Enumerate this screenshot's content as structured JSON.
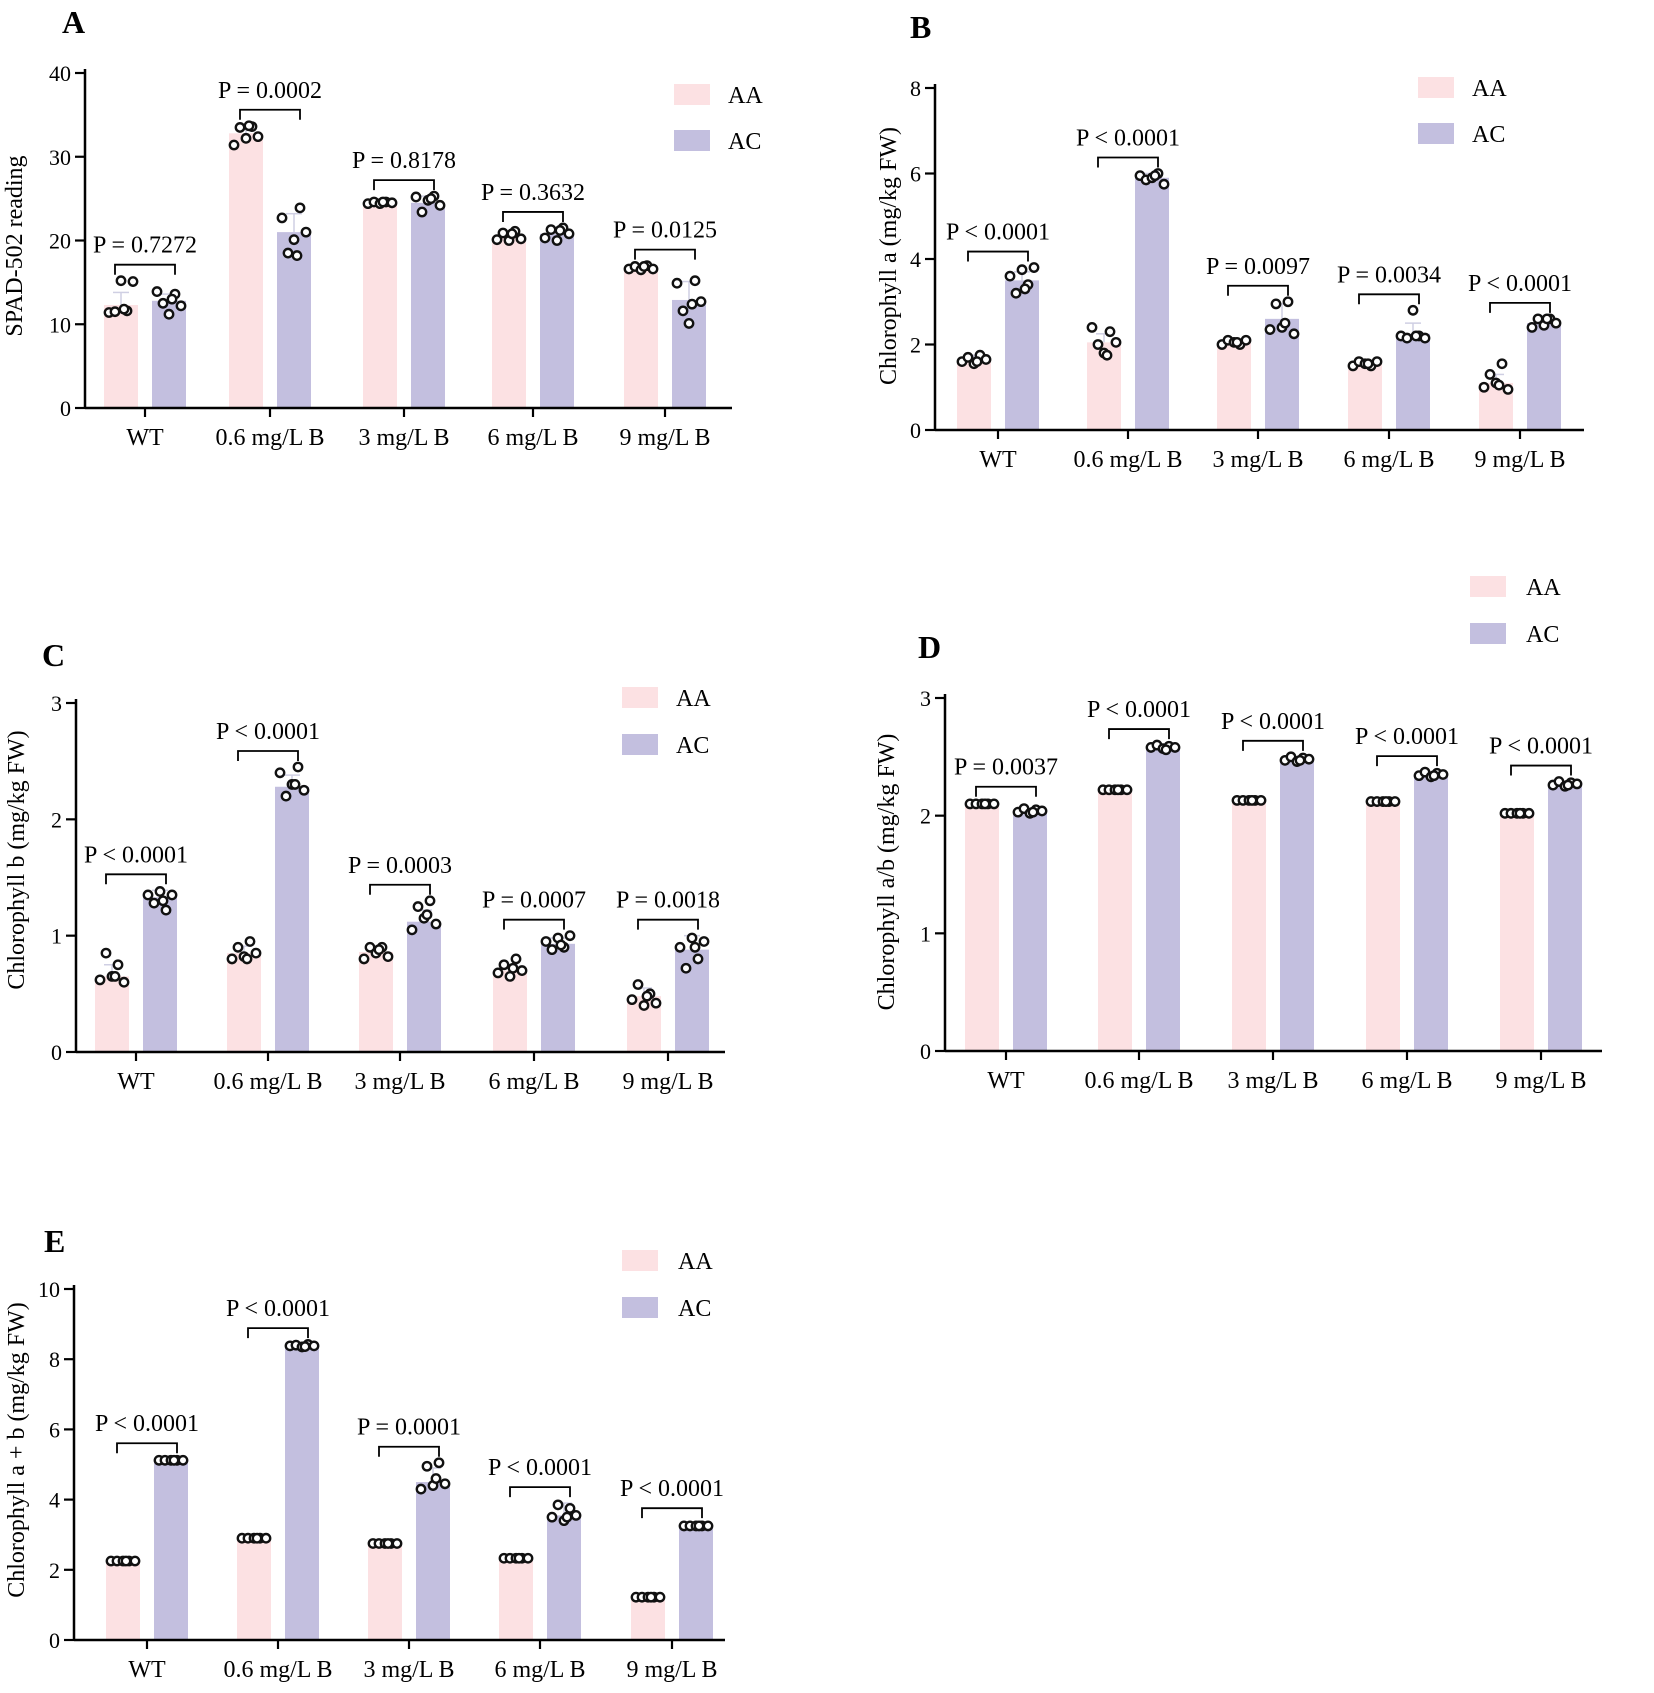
{
  "colors": {
    "AA": "#fce1e3",
    "AC": "#c3bfdf",
    "axis": "#000000",
    "dot_fill": "#ffffff",
    "dot_stroke": "#111111"
  },
  "chart_data": [
    {
      "panel": "A",
      "type": "bar",
      "ylabel": "SPAD-502 reading",
      "ylim": [
        0,
        40
      ],
      "yticks": [
        "0",
        "10",
        "20",
        "30",
        "40"
      ],
      "categories": [
        "WT",
        "0.6 mg/L B",
        "3 mg/L B",
        "6 mg/L B",
        "9 mg/L B"
      ],
      "legend": [
        "AA",
        "AC"
      ],
      "series": [
        {
          "name": "AA",
          "values": [
            12.3,
            32.8,
            24.5,
            20.5,
            16.8
          ],
          "points": [
            [
              11.4,
              11.5,
              15.2,
              11.6,
              15.1,
              11.8
            ],
            [
              31.4,
              33.5,
              32.2,
              33.6,
              32.4,
              33.7
            ],
            [
              24.4,
              24.6,
              24.4,
              24.6,
              24.5,
              24.6
            ],
            [
              20.1,
              20.9,
              20.0,
              21.1,
              20.2,
              20.8
            ],
            [
              16.6,
              16.9,
              16.5,
              17.0,
              16.6,
              16.9
            ]
          ],
          "errors": [
            1.5,
            0.5,
            0.2,
            0.4,
            0.2
          ]
        },
        {
          "name": "AC",
          "values": [
            12.8,
            21.0,
            24.5,
            20.8,
            12.9
          ],
          "points": [
            [
              13.9,
              12.5,
              11.2,
              13.6,
              12.2,
              13.0
            ],
            [
              22.7,
              18.5,
              20.1,
              23.9,
              21.0,
              18.2
            ],
            [
              25.2,
              23.4,
              24.8,
              25.3,
              24.2,
              25.0
            ],
            [
              20.3,
              21.3,
              20.0,
              21.5,
              20.8,
              21.2
            ],
            [
              14.9,
              11.6,
              10.1,
              15.2,
              12.7,
              12.4
            ]
          ],
          "errors": [
            0.8,
            2.2,
            0.8,
            0.5,
            2.2
          ]
        }
      ],
      "pvalues": [
        "P = 0.7272",
        "P = 0.0002",
        "P = 0.8178",
        "P = 0.3632",
        "P = 0.0125"
      ]
    },
    {
      "panel": "B",
      "type": "bar",
      "ylabel": "Chlorophyll a (mg/kg FW)",
      "ylim": [
        0,
        8
      ],
      "yticks": [
        "0",
        "2",
        "4",
        "6",
        "8"
      ],
      "categories": [
        "WT",
        "0.6 mg/L B",
        "3 mg/L B",
        "6 mg/L B",
        "9 mg/L B"
      ],
      "legend": [
        "AA",
        "AC"
      ],
      "series": [
        {
          "name": "AA",
          "values": [
            1.65,
            2.05,
            2.05,
            1.55,
            1.1
          ],
          "points": [
            [
              1.6,
              1.7,
              1.55,
              1.75,
              1.65,
              1.6
            ],
            [
              2.4,
              2.0,
              1.8,
              2.3,
              2.05,
              1.75
            ],
            [
              2.0,
              2.1,
              2.05,
              2.0,
              2.1,
              2.05
            ],
            [
              1.5,
              1.6,
              1.55,
              1.5,
              1.6,
              1.55
            ],
            [
              1.0,
              1.3,
              1.1,
              1.55,
              0.95,
              1.05
            ]
          ],
          "errors": [
            0.1,
            0.2,
            0.05,
            0.05,
            0.2
          ]
        },
        {
          "name": "AC",
          "values": [
            3.5,
            5.9,
            2.6,
            2.25,
            2.5
          ],
          "points": [
            [
              3.6,
              3.2,
              3.75,
              3.4,
              3.8,
              3.3
            ],
            [
              5.95,
              5.85,
              5.9,
              6.0,
              5.75,
              5.95
            ],
            [
              2.35,
              2.95,
              2.4,
              3.0,
              2.25,
              2.5
            ],
            [
              2.2,
              2.15,
              2.8,
              2.2,
              2.15,
              2.2
            ],
            [
              2.4,
              2.6,
              2.45,
              2.6,
              2.5,
              2.6
            ]
          ],
          "errors": [
            0.2,
            0.1,
            0.35,
            0.25,
            0.1
          ]
        }
      ],
      "pvalues": [
        "P < 0.0001",
        "P < 0.0001",
        "P = 0.0097",
        "P = 0.0034",
        "P < 0.0001"
      ]
    },
    {
      "panel": "C",
      "type": "bar",
      "ylabel": "Chlorophyll b (mg/kg FW)",
      "ylim": [
        0,
        3
      ],
      "yticks": [
        "0",
        "1",
        "2",
        "3"
      ],
      "categories": [
        "WT",
        "0.6 mg/L B",
        "3 mg/L B",
        "6 mg/L B",
        "9 mg/L B"
      ],
      "legend": [
        "AA",
        "AC"
      ],
      "series": [
        {
          "name": "AA",
          "values": [
            0.65,
            0.85,
            0.86,
            0.7,
            0.48
          ],
          "points": [
            [
              0.62,
              0.85,
              0.65,
              0.75,
              0.6,
              0.65
            ],
            [
              0.8,
              0.9,
              0.82,
              0.95,
              0.85,
              0.8
            ],
            [
              0.8,
              0.9,
              0.85,
              0.9,
              0.82,
              0.88
            ],
            [
              0.68,
              0.75,
              0.65,
              0.8,
              0.7,
              0.72
            ],
            [
              0.45,
              0.58,
              0.4,
              0.5,
              0.42,
              0.48
            ]
          ],
          "errors": [
            0.1,
            0.06,
            0.05,
            0.05,
            0.07
          ]
        },
        {
          "name": "AC",
          "values": [
            1.33,
            2.28,
            1.12,
            0.93,
            0.88
          ],
          "points": [
            [
              1.35,
              1.28,
              1.38,
              1.22,
              1.35,
              1.3
            ],
            [
              2.4,
              2.2,
              2.3,
              2.45,
              2.25,
              2.3
            ],
            [
              1.05,
              1.25,
              1.15,
              1.3,
              1.1,
              1.18
            ],
            [
              0.95,
              0.88,
              0.98,
              0.9,
              1.0,
              0.92
            ],
            [
              0.9,
              0.72,
              0.98,
              0.8,
              0.95,
              0.9
            ]
          ],
          "errors": [
            0.06,
            0.1,
            0.1,
            0.05,
            0.12
          ]
        }
      ],
      "pvalues": [
        "P < 0.0001",
        "P < 0.0001",
        "P = 0.0003",
        "P = 0.0007",
        "P = 0.0018"
      ]
    },
    {
      "panel": "D",
      "type": "bar",
      "ylabel": "Chlorophyll a/b (mg/kg FW)",
      "ylim": [
        0,
        3
      ],
      "yticks": [
        "0",
        "1",
        "2",
        "3"
      ],
      "categories": [
        "WT",
        "0.6 mg/L B",
        "3 mg/L B",
        "6 mg/L B",
        "9 mg/L B"
      ],
      "legend": [
        "AA",
        "AC"
      ],
      "series": [
        {
          "name": "AA",
          "values": [
            2.1,
            2.22,
            2.13,
            2.12,
            2.02
          ],
          "points": [
            [
              2.1,
              2.1,
              2.1,
              2.1,
              2.1,
              2.1
            ],
            [
              2.22,
              2.22,
              2.22,
              2.22,
              2.22,
              2.22
            ],
            [
              2.13,
              2.13,
              2.13,
              2.13,
              2.13,
              2.13
            ],
            [
              2.12,
              2.12,
              2.12,
              2.12,
              2.12,
              2.12
            ],
            [
              2.02,
              2.02,
              2.02,
              2.02,
              2.02,
              2.02
            ]
          ],
          "errors": [
            0.01,
            0.01,
            0.01,
            0.01,
            0.01
          ]
        },
        {
          "name": "AC",
          "values": [
            2.04,
            2.58,
            2.48,
            2.35,
            2.27
          ],
          "points": [
            [
              2.03,
              2.06,
              2.02,
              2.05,
              2.04,
              2.03
            ],
            [
              2.58,
              2.6,
              2.57,
              2.59,
              2.58,
              2.56
            ],
            [
              2.47,
              2.5,
              2.46,
              2.49,
              2.48,
              2.47
            ],
            [
              2.34,
              2.37,
              2.33,
              2.36,
              2.35,
              2.34
            ],
            [
              2.26,
              2.29,
              2.25,
              2.28,
              2.27,
              2.26
            ]
          ],
          "errors": [
            0.02,
            0.02,
            0.02,
            0.02,
            0.02
          ]
        }
      ],
      "pvalues": [
        "P = 0.0037",
        "P < 0.0001",
        "P < 0.0001",
        "P < 0.0001",
        "P < 0.0001"
      ]
    },
    {
      "panel": "E",
      "type": "bar",
      "ylabel": "Chlorophyll a + b (mg/kg FW)",
      "ylim": [
        0,
        10
      ],
      "yticks": [
        "0",
        "2",
        "4",
        "6",
        "8",
        "10"
      ],
      "categories": [
        "WT",
        "0.6 mg/L B",
        "3 mg/L B",
        "6 mg/L B",
        "9 mg/L B"
      ],
      "legend": [
        "AA",
        "AC"
      ],
      "series": [
        {
          "name": "AA",
          "values": [
            2.25,
            2.9,
            2.75,
            2.33,
            1.22
          ],
          "points": [
            [
              2.25,
              2.25,
              2.25,
              2.25,
              2.25,
              2.25
            ],
            [
              2.9,
              2.9,
              2.9,
              2.9,
              2.9,
              2.9
            ],
            [
              2.75,
              2.75,
              2.75,
              2.75,
              2.75,
              2.75
            ],
            [
              2.33,
              2.33,
              2.33,
              2.33,
              2.33,
              2.33
            ],
            [
              1.22,
              1.22,
              1.22,
              1.22,
              1.22,
              1.22
            ]
          ],
          "errors": [
            0.05,
            0.05,
            0.05,
            0.05,
            0.03
          ]
        },
        {
          "name": "AC",
          "values": [
            5.1,
            8.35,
            4.5,
            3.55,
            3.25
          ],
          "points": [
            [
              5.12,
              5.12,
              5.12,
              5.12,
              5.12,
              5.12
            ],
            [
              8.38,
              8.4,
              8.35,
              8.42,
              8.38,
              8.36
            ],
            [
              4.3,
              4.95,
              4.4,
              5.05,
              4.45,
              4.6
            ],
            [
              3.5,
              3.85,
              3.4,
              3.75,
              3.55,
              3.5
            ],
            [
              3.25,
              3.25,
              3.25,
              3.25,
              3.25,
              3.25
            ]
          ],
          "errors": [
            0.05,
            0.08,
            0.4,
            0.35,
            0.05
          ]
        }
      ],
      "pvalues": [
        "P < 0.0001",
        "P < 0.0001",
        "P = 0.0001",
        "P < 0.0001",
        "P < 0.0001"
      ]
    }
  ]
}
